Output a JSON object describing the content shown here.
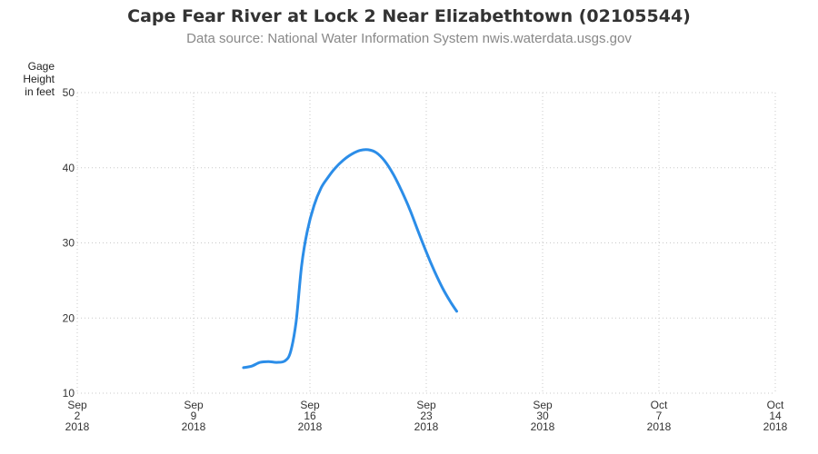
{
  "chart_data": {
    "type": "line",
    "title": "Cape Fear River at Lock 2 Near Elizabethtown (02105544)",
    "subtitle": "Data source: National Water Information System nwis.waterdata.usgs.gov",
    "ylabel": [
      "Gage Height",
      "in feet"
    ],
    "ylim": [
      10,
      50
    ],
    "yticks": [
      10,
      20,
      30,
      40,
      50
    ],
    "xlim": [
      "2018-09-02",
      "2018-10-14"
    ],
    "xticks": [
      {
        "date": "2018-09-02",
        "month": "Sep",
        "day": "2",
        "year": "2018"
      },
      {
        "date": "2018-09-09",
        "month": "Sep",
        "day": "9",
        "year": "2018"
      },
      {
        "date": "2018-09-16",
        "month": "Sep",
        "day": "16",
        "year": "2018"
      },
      {
        "date": "2018-09-23",
        "month": "Sep",
        "day": "23",
        "year": "2018"
      },
      {
        "date": "2018-09-30",
        "month": "Sep",
        "day": "30",
        "year": "2018"
      },
      {
        "date": "2018-10-07",
        "month": "Oct",
        "day": "7",
        "year": "2018"
      },
      {
        "date": "2018-10-14",
        "month": "Oct",
        "day": "14",
        "year": "2018"
      }
    ],
    "grid": true,
    "series": [
      {
        "color": "#2b8de8",
        "points": [
          [
            "2018-09-12 00:00",
            13.4
          ],
          [
            "2018-09-12 12:00",
            13.6
          ],
          [
            "2018-09-13 00:00",
            14.1
          ],
          [
            "2018-09-13 12:00",
            14.2
          ],
          [
            "2018-09-14 00:00",
            14.1
          ],
          [
            "2018-09-14 12:00",
            14.3
          ],
          [
            "2018-09-14 20:00",
            15.5
          ],
          [
            "2018-09-15 04:00",
            19.5
          ],
          [
            "2018-09-15 12:00",
            27.0
          ],
          [
            "2018-09-15 20:00",
            31.5
          ],
          [
            "2018-09-16 06:00",
            35.0
          ],
          [
            "2018-09-16 16:00",
            37.3
          ],
          [
            "2018-09-17 02:00",
            38.7
          ],
          [
            "2018-09-17 12:00",
            39.9
          ],
          [
            "2018-09-18 00:00",
            41.0
          ],
          [
            "2018-09-18 12:00",
            41.8
          ],
          [
            "2018-09-19 00:00",
            42.3
          ],
          [
            "2018-09-19 12:00",
            42.4
          ],
          [
            "2018-09-20 00:00",
            42.0
          ],
          [
            "2018-09-20 12:00",
            40.9
          ],
          [
            "2018-09-21 00:00",
            39.2
          ],
          [
            "2018-09-21 12:00",
            37.0
          ],
          [
            "2018-09-22 00:00",
            34.5
          ],
          [
            "2018-09-22 12:00",
            31.6
          ],
          [
            "2018-09-23 00:00",
            28.8
          ],
          [
            "2018-09-23 12:00",
            26.2
          ],
          [
            "2018-09-24 00:00",
            23.9
          ],
          [
            "2018-09-24 12:00",
            22.0
          ],
          [
            "2018-09-24 20:00",
            20.9
          ]
        ]
      }
    ]
  }
}
